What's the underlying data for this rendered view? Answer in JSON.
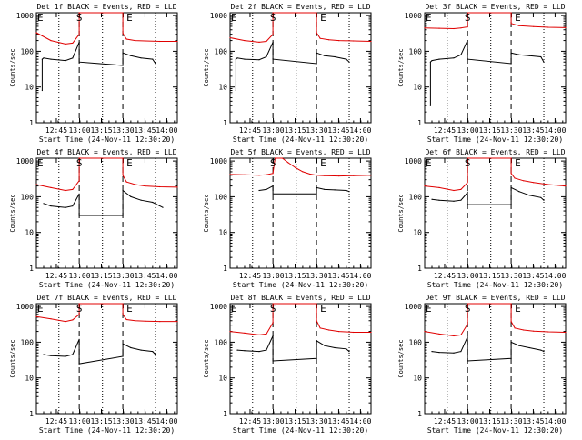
{
  "figure": {
    "background": "#ffffff",
    "events_color": "#000000",
    "lld_color": "#e00000",
    "ylabel": "Counts/sec",
    "xlabel": "Start Time (24-Nov-11 12:30:20)",
    "x_ticks": [
      {
        "t": 13.75,
        "label": "12:45"
      },
      {
        "t": 29.75,
        "label": "13:00"
      },
      {
        "t": 44.75,
        "label": "13:15"
      },
      {
        "t": 59.75,
        "label": "13:30"
      },
      {
        "t": 74.75,
        "label": "13:45"
      },
      {
        "t": 89.75,
        "label": "14:00"
      }
    ],
    "y_ticks": [
      1,
      10,
      100,
      1000
    ],
    "y_tick_labels": [
      "1",
      "10",
      "100",
      "1000"
    ],
    "xlim_minutes_after_start": [
      0,
      97
    ],
    "ylim": [
      1,
      1200
    ],
    "y_scale": "log"
  },
  "chart_data": [
    {
      "type": "line",
      "title": "Det 1f BLACK = Events, RED = LLD",
      "markers": {
        "E1": 0,
        "S": 29.5,
        "E2": 59.5
      },
      "dotted_x": [
        15.5,
        45.5,
        82
      ],
      "dashed_x": [
        29.5,
        59.5
      ],
      "series": [
        {
          "name": "LLD",
          "color": "#e00000",
          "x": [
            0,
            10,
            20,
            25,
            29.5,
            29.5,
            59.5,
            59.5,
            62,
            68,
            75,
            85,
            97
          ],
          "y": [
            330,
            200,
            160,
            170,
            300,
            1200,
            1200,
            320,
            220,
            200,
            195,
            190,
            190
          ]
        },
        {
          "name": "Events",
          "color": "#000000",
          "x": [
            4,
            4,
            5,
            10,
            20,
            25,
            29.5,
            29.5,
            59.5,
            59.5,
            65,
            72,
            80,
            82
          ],
          "y": [
            8,
            60,
            65,
            60,
            55,
            65,
            180,
            50,
            40,
            90,
            75,
            65,
            60,
            45
          ]
        }
      ]
    },
    {
      "type": "line",
      "title": "Det 2f BLACK = Events, RED = LLD",
      "markers": {
        "E1": 0,
        "S": 29.5,
        "E2": 59.5
      },
      "dotted_x": [
        15.5,
        45.5,
        82
      ],
      "dashed_x": [
        29.5,
        59.5
      ],
      "series": [
        {
          "name": "LLD",
          "color": "#e00000",
          "x": [
            0,
            10,
            20,
            25,
            29.5,
            29.5,
            59.5,
            59.5,
            62,
            68,
            75,
            85,
            97
          ],
          "y": [
            240,
            200,
            180,
            190,
            300,
            1200,
            1200,
            330,
            230,
            210,
            200,
            195,
            190
          ]
        },
        {
          "name": "Events",
          "color": "#000000",
          "x": [
            4,
            4,
            5,
            10,
            20,
            25,
            29.5,
            29.5,
            59.5,
            59.5,
            65,
            72,
            80,
            82
          ],
          "y": [
            8,
            60,
            65,
            60,
            58,
            70,
            180,
            60,
            45,
            90,
            75,
            70,
            60,
            50
          ]
        }
      ]
    },
    {
      "type": "line",
      "title": "Det 3f BLACK = Events, RED = LLD",
      "markers": {
        "E1": 0,
        "S": 29.5,
        "E2": 59.5
      },
      "dotted_x": [
        15.5,
        45.5,
        82
      ],
      "dashed_x": [
        29.5,
        59.5
      ],
      "series": [
        {
          "name": "LLD",
          "color": "#e00000",
          "x": [
            0,
            10,
            20,
            25,
            29.5,
            29.5,
            59.5,
            59.5,
            65,
            75,
            85,
            97
          ],
          "y": [
            450,
            440,
            430,
            450,
            480,
            1200,
            1200,
            600,
            520,
            490,
            470,
            460
          ]
        },
        {
          "name": "Events",
          "color": "#000000",
          "x": [
            4,
            4,
            5,
            10,
            20,
            25,
            29.5,
            29.5,
            59.5,
            59.5,
            65,
            72,
            80,
            82
          ],
          "y": [
            3,
            50,
            55,
            60,
            65,
            80,
            200,
            60,
            45,
            90,
            80,
            75,
            70,
            50
          ]
        }
      ]
    },
    {
      "type": "line",
      "title": "Det 4f BLACK = Events, RED = LLD",
      "markers": {
        "E1": 0,
        "S": 29.5,
        "E2": 59.5
      },
      "dotted_x": [
        15.5,
        45.5,
        82
      ],
      "dashed_x": [
        29.5,
        59.5
      ],
      "series": [
        {
          "name": "LLD",
          "color": "#e00000",
          "x": [
            0,
            10,
            20,
            25,
            29.5,
            29.5,
            59.5,
            59.5,
            62,
            68,
            75,
            85,
            97
          ],
          "y": [
            220,
            180,
            150,
            160,
            280,
            1200,
            1200,
            400,
            260,
            220,
            200,
            190,
            185
          ]
        },
        {
          "name": "Events",
          "color": "#000000",
          "x": [
            5,
            10,
            20,
            25,
            29.5,
            29.5,
            59.5,
            59.5,
            65,
            72,
            80,
            87
          ],
          "y": [
            65,
            55,
            50,
            55,
            120,
            30,
            30,
            150,
            100,
            80,
            70,
            50
          ]
        }
      ]
    },
    {
      "type": "line",
      "title": "Det 5f BLACK = Events, RED = LLD",
      "markers": {
        "E1": null,
        "S": 29.5,
        "E2": 59.5
      },
      "dotted_x": [
        15.5,
        45.5,
        82
      ],
      "dashed_x": [
        29.5,
        59.5
      ],
      "series": [
        {
          "name": "LLD",
          "color": "#e00000",
          "x": [
            0,
            10,
            20,
            25,
            29.5,
            31,
            36,
            40,
            45,
            50,
            55,
            59.5,
            65,
            75,
            85,
            97
          ],
          "y": [
            420,
            410,
            400,
            410,
            450,
            1200,
            1200,
            900,
            650,
            500,
            430,
            400,
            390,
            380,
            390,
            400
          ]
        },
        {
          "name": "Events",
          "color": "#000000",
          "x": [
            20,
            25,
            29.5,
            29.5,
            59.5,
            59.5,
            65,
            72,
            80,
            82
          ],
          "y": [
            150,
            160,
            200,
            120,
            120,
            180,
            160,
            155,
            150,
            140
          ]
        }
      ]
    },
    {
      "type": "line",
      "title": "Det 6f BLACK = Events, RED = LLD",
      "markers": {
        "E1": 0,
        "S": 29.5,
        "E2": 59.5
      },
      "dotted_x": [
        15.5,
        45.5,
        82
      ],
      "dashed_x": [
        29.5,
        59.5
      ],
      "series": [
        {
          "name": "LLD",
          "color": "#e00000",
          "x": [
            0,
            10,
            20,
            25,
            29.5,
            29.5,
            59.5,
            59.5,
            62,
            68,
            75,
            85,
            97
          ],
          "y": [
            200,
            180,
            150,
            160,
            250,
            1200,
            1200,
            450,
            330,
            280,
            250,
            220,
            200
          ]
        },
        {
          "name": "Events",
          "color": "#000000",
          "x": [
            5,
            10,
            20,
            25,
            29.5,
            29.5,
            59.5,
            59.5,
            65,
            72,
            80,
            82
          ],
          "y": [
            85,
            80,
            75,
            80,
            130,
            60,
            60,
            180,
            140,
            110,
            95,
            80
          ]
        }
      ]
    },
    {
      "type": "line",
      "title": "Det 7f BLACK = Events, RED = LLD",
      "markers": {
        "E1": 0,
        "S": 29.5,
        "E2": 59.5
      },
      "dotted_x": [
        15.5,
        45.5,
        82
      ],
      "dashed_x": [
        29.5,
        59.5
      ],
      "series": [
        {
          "name": "LLD",
          "color": "#e00000",
          "x": [
            0,
            10,
            20,
            25,
            29.5,
            29.5,
            59.5,
            59.5,
            62,
            68,
            75,
            85,
            97
          ],
          "y": [
            520,
            450,
            380,
            420,
            600,
            1200,
            1200,
            600,
            430,
            400,
            390,
            380,
            380
          ]
        },
        {
          "name": "Events",
          "color": "#000000",
          "x": [
            5,
            10,
            20,
            25,
            29.5,
            29.5,
            59.5,
            59.5,
            65,
            72,
            80,
            82
          ],
          "y": [
            45,
            42,
            40,
            45,
            120,
            25,
            40,
            90,
            70,
            60,
            55,
            45
          ]
        }
      ]
    },
    {
      "type": "line",
      "title": "Det 8f BLACK = Events, RED = LLD",
      "markers": {
        "E1": 0,
        "S": 29.5,
        "E2": 59.5
      },
      "dotted_x": [
        15.5,
        45.5,
        82
      ],
      "dashed_x": [
        29.5,
        59.5
      ],
      "series": [
        {
          "name": "LLD",
          "color": "#e00000",
          "x": [
            0,
            10,
            20,
            25,
            29.5,
            29.5,
            59.5,
            59.5,
            62,
            68,
            75,
            85,
            97
          ],
          "y": [
            200,
            180,
            160,
            170,
            350,
            1200,
            1200,
            400,
            250,
            220,
            200,
            190,
            190
          ]
        },
        {
          "name": "Events",
          "color": "#000000",
          "x": [
            5,
            10,
            20,
            25,
            29.5,
            29.5,
            59.5,
            59.5,
            65,
            72,
            80,
            82
          ],
          "y": [
            60,
            58,
            55,
            60,
            150,
            30,
            35,
            110,
            80,
            70,
            65,
            55
          ]
        }
      ]
    },
    {
      "type": "line",
      "title": "Det 9f BLACK = Events, RED = LLD",
      "markers": {
        "E1": 0,
        "S": 29.5,
        "E2": 59.5
      },
      "dotted_x": [
        15.5,
        45.5,
        82
      ],
      "dashed_x": [
        29.5,
        59.5
      ],
      "series": [
        {
          "name": "LLD",
          "color": "#e00000",
          "x": [
            0,
            10,
            20,
            25,
            29.5,
            29.5,
            59.5,
            59.5,
            62,
            68,
            75,
            85,
            97
          ],
          "y": [
            200,
            170,
            150,
            160,
            320,
            1200,
            1200,
            380,
            250,
            220,
            205,
            195,
            190
          ]
        },
        {
          "name": "Events",
          "color": "#000000",
          "x": [
            5,
            10,
            20,
            25,
            29.5,
            29.5,
            59.5,
            59.5,
            65,
            72,
            80,
            82
          ],
          "y": [
            55,
            52,
            50,
            55,
            140,
            30,
            35,
            100,
            80,
            70,
            60,
            55
          ]
        }
      ]
    }
  ]
}
